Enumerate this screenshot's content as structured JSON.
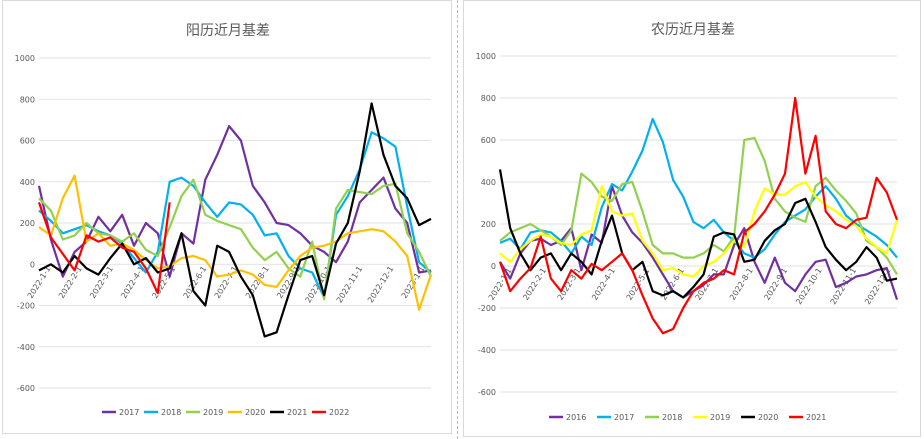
{
  "chart_data": [
    {
      "type": "line",
      "title": "阳历近月基差",
      "ylim": [
        -600,
        1000
      ],
      "yticks": [
        -600,
        -400,
        -200,
        0,
        200,
        400,
        600,
        800,
        1000
      ],
      "xticks": [
        "2022-1-1",
        "2022-2-1",
        "2022-3-1",
        "2022-4-1",
        "2022-5-1",
        "2022-6-1",
        "2022-7-1",
        "2022-8-1",
        "2022-9-1",
        "2022-10-1",
        "2022-11-1",
        "2022-12-1",
        "2023-1-1"
      ],
      "grid": true,
      "legend_position": "bottom",
      "series": [
        {
          "name": "2017",
          "color": "#7030a0",
          "values": [
            380,
            120,
            -60,
            60,
            110,
            230,
            160,
            240,
            90,
            200,
            150,
            -60,
            150,
            100,
            410,
            530,
            670,
            600,
            380,
            300,
            200,
            190,
            150,
            90,
            60,
            10,
            110,
            300,
            360,
            420,
            270,
            200,
            -40,
            -30
          ]
        },
        {
          "name": "2018",
          "color": "#00b0f0",
          "values": [
            260,
            210,
            150,
            170,
            190,
            160,
            140,
            100,
            30,
            -40,
            60,
            400,
            420,
            380,
            300,
            230,
            300,
            290,
            240,
            140,
            150,
            40,
            -20,
            -40,
            -160,
            240,
            330,
            460,
            640,
            610,
            570,
            280,
            10,
            -40
          ]
        },
        {
          "name": "2019",
          "color": "#92d050",
          "values": [
            320,
            260,
            120,
            140,
            200,
            150,
            140,
            110,
            150,
            70,
            40,
            180,
            330,
            410,
            240,
            210,
            190,
            170,
            80,
            20,
            60,
            -20,
            -60,
            110,
            -170,
            270,
            360,
            350,
            340,
            380,
            390,
            150,
            60,
            -60
          ]
        },
        {
          "name": "2020",
          "color": "#ffc000",
          "values": [
            180,
            140,
            320,
            430,
            110,
            150,
            90,
            100,
            70,
            20,
            -20,
            -10,
            30,
            40,
            20,
            -60,
            -50,
            -30,
            -50,
            -100,
            -110,
            -30,
            40,
            80,
            90,
            110,
            150,
            160,
            170,
            160,
            110,
            40,
            -220,
            -50
          ]
        },
        {
          "name": "2021",
          "color": "#000000",
          "values": [
            -30,
            0,
            -40,
            40,
            -20,
            -50,
            30,
            100,
            0,
            30,
            -40,
            -20,
            150,
            -130,
            -200,
            90,
            60,
            -60,
            -150,
            -350,
            -330,
            -150,
            20,
            40,
            -150,
            100,
            200,
            450,
            780,
            530,
            380,
            320,
            190,
            220
          ]
        },
        {
          "name": "2022",
          "color": "#ff0000",
          "values": [
            300,
            130,
            50,
            -30,
            140,
            110,
            130,
            80,
            60,
            -20,
            -140,
            300
          ]
        }
      ]
    },
    {
      "type": "line",
      "title": "农历近月基差",
      "ylim": [
        -600,
        1000
      ],
      "yticks": [
        -600,
        -400,
        -200,
        0,
        200,
        400,
        600,
        800,
        1000
      ],
      "xticks": [
        "2022-1-1",
        "2022-2-1",
        "2022-3-1",
        "2022-4-1",
        "2022-5-1",
        "2022-6-1",
        "2022-7-1",
        "2022-8-1",
        "2022-9-1",
        "2022-10-1",
        "2022-11-1",
        "2022-12-1"
      ],
      "grid": true,
      "legend_position": "bottom",
      "series": [
        {
          "name": "2016",
          "color": "#7030a0",
          "values": [
            20,
            -60,
            60,
            120,
            130,
            100,
            120,
            180,
            -20,
            150,
            110,
            380,
            240,
            160,
            110,
            40,
            -40,
            -120,
            -150,
            -120,
            -90,
            -40,
            -40,
            100,
            180,
            20,
            -80,
            40,
            -80,
            -120,
            -40,
            20,
            30,
            -100,
            -80,
            -50,
            -40,
            -20,
            -10,
            -160
          ]
        },
        {
          "name": "2017",
          "color": "#00b0f0",
          "values": [
            110,
            130,
            80,
            160,
            170,
            160,
            120,
            60,
            140,
            100,
            280,
            390,
            360,
            450,
            550,
            700,
            590,
            410,
            330,
            210,
            180,
            220,
            160,
            120,
            60,
            40,
            80,
            150,
            210,
            240,
            270,
            330,
            380,
            320,
            240,
            200,
            170,
            140,
            100,
            40
          ]
        },
        {
          "name": "2018",
          "color": "#92d050",
          "values": [
            120,
            160,
            180,
            200,
            170,
            140,
            100,
            170,
            440,
            400,
            330,
            310,
            390,
            400,
            260,
            100,
            60,
            60,
            40,
            40,
            60,
            100,
            70,
            140,
            600,
            610,
            500,
            320,
            260,
            230,
            210,
            380,
            420,
            360,
            310,
            250,
            120,
            90,
            40,
            -40
          ]
        },
        {
          "name": "2019",
          "color": "#ffff00",
          "values": [
            60,
            20,
            80,
            120,
            150,
            140,
            110,
            100,
            150,
            170,
            380,
            260,
            240,
            250,
            120,
            60,
            -20,
            -10,
            -40,
            -50,
            0,
            20,
            60,
            120,
            90,
            260,
            370,
            340,
            340,
            380,
            400,
            330,
            290,
            260,
            220,
            190,
            130,
            90,
            60,
            220
          ]
        },
        {
          "name": "2020",
          "color": "#000000",
          "values": [
            460,
            180,
            60,
            -20,
            40,
            60,
            -20,
            60,
            20,
            -40,
            120,
            240,
            60,
            -20,
            20,
            -120,
            -140,
            -120,
            -150,
            -100,
            -40,
            140,
            160,
            150,
            20,
            30,
            120,
            170,
            200,
            300,
            320,
            210,
            90,
            30,
            -20,
            20,
            90,
            40,
            -70,
            -60
          ]
        },
        {
          "name": "2021",
          "color": "#ff0000",
          "values": [
            20,
            -120,
            -60,
            -10,
            140,
            -60,
            -120,
            -20,
            -60,
            10,
            -20,
            20,
            60,
            -20,
            -140,
            -250,
            -320,
            -300,
            -200,
            -120,
            -80,
            -60,
            -20,
            -40,
            160,
            200,
            260,
            340,
            440,
            800,
            440,
            620,
            260,
            200,
            180,
            220,
            230,
            420,
            350,
            220
          ]
        }
      ]
    }
  ]
}
